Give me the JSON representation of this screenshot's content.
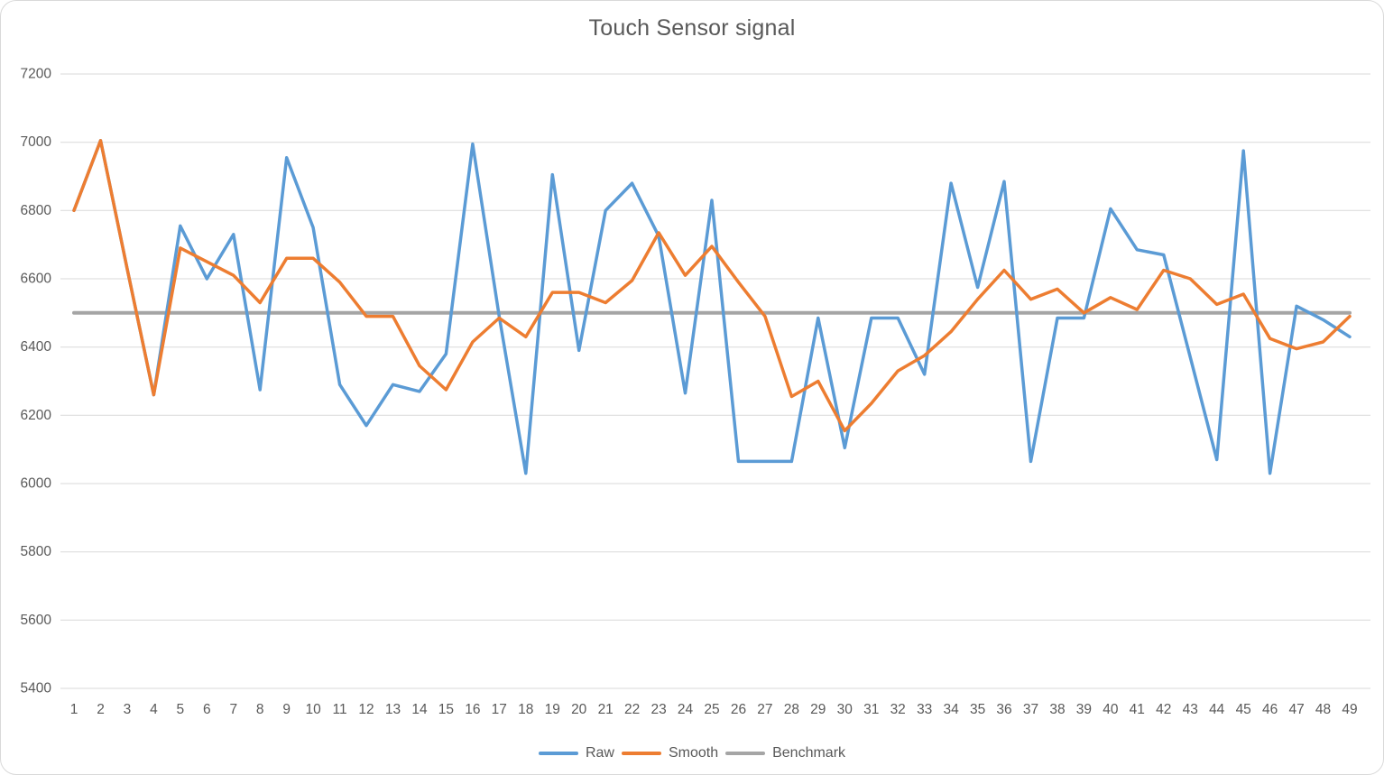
{
  "chart": {
    "title": "Touch Sensor signal"
  },
  "style": {
    "background": "#FFFFFF",
    "frame_border": "#D9D9D9",
    "grid_color": "#D9D9D9",
    "axis_text_color": "#595959",
    "title_color": "#595959",
    "raw_color": "#5B9BD5",
    "smooth_color": "#ED7D31",
    "benchmark_color": "#A5A5A5"
  },
  "chart_data": {
    "type": "line",
    "title": "Touch Sensor signal",
    "xlabel": "",
    "ylabel": "",
    "ylim": [
      5400,
      7200
    ],
    "ytick_step": 200,
    "grid": true,
    "legend_position": "bottom",
    "categories": [
      1,
      2,
      3,
      4,
      5,
      6,
      7,
      8,
      9,
      10,
      11,
      12,
      13,
      14,
      15,
      16,
      17,
      18,
      19,
      20,
      21,
      22,
      23,
      24,
      25,
      26,
      27,
      28,
      29,
      30,
      31,
      32,
      33,
      34,
      35,
      36,
      37,
      38,
      39,
      40,
      41,
      42,
      43,
      44,
      45,
      46,
      47,
      48,
      49
    ],
    "series": [
      {
        "name": "Raw",
        "color": "#5B9BD5",
        "values": [
          6800,
          7005,
          6630,
          6260,
          6755,
          6600,
          6730,
          6275,
          6955,
          6750,
          6290,
          6170,
          6290,
          6270,
          6380,
          6995,
          6490,
          6030,
          6905,
          6390,
          6800,
          6880,
          6725,
          6265,
          6830,
          6065,
          6065,
          6065,
          6485,
          6105,
          6485,
          6485,
          6320,
          6880,
          6575,
          6885,
          6065,
          6485,
          6485,
          6805,
          6685,
          6670,
          6370,
          6070,
          6975,
          6030,
          6520,
          6480,
          6430
        ]
      },
      {
        "name": "Smooth",
        "color": "#ED7D31",
        "values": [
          6800,
          7005,
          6630,
          6260,
          6690,
          6650,
          6610,
          6530,
          6660,
          6660,
          6590,
          6490,
          6490,
          6345,
          6275,
          6415,
          6485,
          6430,
          6560,
          6560,
          6530,
          6595,
          6735,
          6610,
          6695,
          6590,
          6490,
          6255,
          6300,
          6155,
          6235,
          6330,
          6375,
          6445,
          6540,
          6625,
          6540,
          6570,
          6500,
          6545,
          6510,
          6625,
          6600,
          6525,
          6555,
          6425,
          6395,
          6415,
          6490
        ]
      },
      {
        "name": "Benchmark",
        "color": "#A5A5A5",
        "constant": 6500
      }
    ]
  }
}
